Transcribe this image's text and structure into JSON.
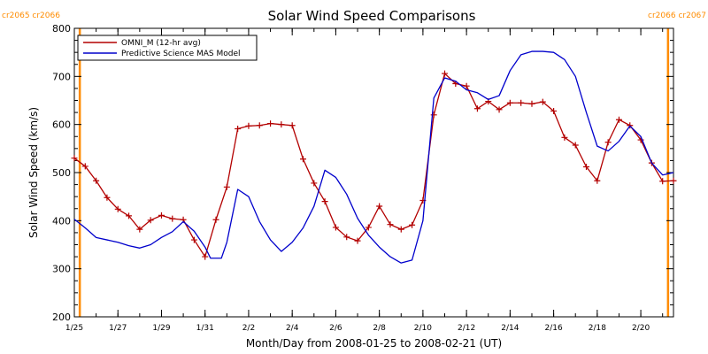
{
  "chart_data": {
    "type": "line",
    "title": "Solar Wind Speed Comparisons",
    "xlabel": "Month/Day from 2008-01-25 to 2008-02-21 (UT)",
    "ylabel": "Solar Wind Speed (km/s)",
    "xlim": [
      "2008-01-25",
      "2008-02-21 12:00"
    ],
    "ylim": [
      200,
      800
    ],
    "yticks": [
      200,
      300,
      400,
      500,
      600,
      700,
      800
    ],
    "xticks": [
      {
        "date": "2008-01-25",
        "label": "1/25"
      },
      {
        "date": "2008-01-27",
        "label": "1/27"
      },
      {
        "date": "2008-01-29",
        "label": "1/29"
      },
      {
        "date": "2008-01-31",
        "label": "1/31"
      },
      {
        "date": "2008-02-02",
        "label": "2/2"
      },
      {
        "date": "2008-02-04",
        "label": "2/4"
      },
      {
        "date": "2008-02-06",
        "label": "2/6"
      },
      {
        "date": "2008-02-08",
        "label": "2/8"
      },
      {
        "date": "2008-02-10",
        "label": "2/10"
      },
      {
        "date": "2008-02-12",
        "label": "2/12"
      },
      {
        "date": "2008-02-14",
        "label": "2/14"
      },
      {
        "date": "2008-02-16",
        "label": "2/16"
      },
      {
        "date": "2008-02-18",
        "label": "2/18"
      },
      {
        "date": "2008-02-20",
        "label": "2/20"
      }
    ],
    "legend_position": "top-left",
    "grid": false,
    "rotation_markers": [
      {
        "date": "2008-01-25 06:00",
        "label": "cr2065 cr2066",
        "side": "left"
      },
      {
        "date": "2008-02-21 06:00",
        "label": "cr2066 cr2067",
        "side": "right"
      }
    ],
    "series": [
      {
        "name": "OMNI_M (12-hr avg)",
        "color": "#b30000",
        "marker": "plus",
        "points": [
          [
            "2008-01-25 00:00",
            530
          ],
          [
            "2008-01-25 12:00",
            513
          ],
          [
            "2008-01-26 00:00",
            483
          ],
          [
            "2008-01-26 12:00",
            448
          ],
          [
            "2008-01-27 00:00",
            424
          ],
          [
            "2008-01-27 12:00",
            410
          ],
          [
            "2008-01-28 00:00",
            382
          ],
          [
            "2008-01-28 12:00",
            401
          ],
          [
            "2008-01-29 00:00",
            411
          ],
          [
            "2008-01-29 12:00",
            404
          ],
          [
            "2008-01-30 00:00",
            402
          ],
          [
            "2008-01-30 12:00",
            360
          ],
          [
            "2008-01-31 00:00",
            325
          ],
          [
            "2008-01-31 12:00",
            402
          ],
          [
            "2008-02-01 00:00",
            470
          ],
          [
            "2008-02-01 12:00",
            591
          ],
          [
            "2008-02-02 00:00",
            597
          ],
          [
            "2008-02-02 12:00",
            598
          ],
          [
            "2008-02-03 00:00",
            602
          ],
          [
            "2008-02-03 12:00",
            600
          ],
          [
            "2008-02-04 00:00",
            598
          ],
          [
            "2008-02-04 12:00",
            528
          ],
          [
            "2008-02-05 00:00",
            478
          ],
          [
            "2008-02-05 12:00",
            440
          ],
          [
            "2008-02-06 00:00",
            386
          ],
          [
            "2008-02-06 12:00",
            366
          ],
          [
            "2008-02-07 00:00",
            358
          ],
          [
            "2008-02-07 12:00",
            386
          ],
          [
            "2008-02-08 00:00",
            430
          ],
          [
            "2008-02-08 12:00",
            392
          ],
          [
            "2008-02-09 00:00",
            382
          ],
          [
            "2008-02-09 12:00",
            391
          ],
          [
            "2008-02-10 00:00",
            442
          ],
          [
            "2008-02-10 12:00",
            620
          ],
          [
            "2008-02-11 00:00",
            706
          ],
          [
            "2008-02-11 12:00",
            685
          ],
          [
            "2008-02-12 00:00",
            680
          ],
          [
            "2008-02-12 12:00",
            633
          ],
          [
            "2008-02-13 00:00",
            648
          ],
          [
            "2008-02-13 12:00",
            631
          ],
          [
            "2008-02-14 00:00",
            645
          ],
          [
            "2008-02-14 12:00",
            645
          ],
          [
            "2008-02-15 00:00",
            643
          ],
          [
            "2008-02-15 12:00",
            647
          ],
          [
            "2008-02-16 00:00",
            628
          ],
          [
            "2008-02-16 12:00",
            573
          ],
          [
            "2008-02-17 00:00",
            557
          ],
          [
            "2008-02-17 12:00",
            512
          ],
          [
            "2008-02-18 00:00",
            483
          ],
          [
            "2008-02-18 12:00",
            563
          ],
          [
            "2008-02-19 00:00",
            610
          ],
          [
            "2008-02-19 12:00",
            598
          ],
          [
            "2008-02-20 00:00",
            568
          ],
          [
            "2008-02-20 12:00",
            520
          ],
          [
            "2008-02-21 00:00",
            482
          ],
          [
            "2008-02-21 12:00",
            483
          ]
        ]
      },
      {
        "name": "Predictive Science MAS Model",
        "color": "#0000cc",
        "marker": "none",
        "points": [
          [
            "2008-01-25 00:00",
            403
          ],
          [
            "2008-01-25 12:00",
            385
          ],
          [
            "2008-01-26 00:00",
            365
          ],
          [
            "2008-01-26 12:00",
            360
          ],
          [
            "2008-01-27 00:00",
            355
          ],
          [
            "2008-01-27 12:00",
            348
          ],
          [
            "2008-01-28 00:00",
            343
          ],
          [
            "2008-01-28 12:00",
            350
          ],
          [
            "2008-01-29 00:00",
            365
          ],
          [
            "2008-01-29 12:00",
            377
          ],
          [
            "2008-01-30 00:00",
            398
          ],
          [
            "2008-01-30 12:00",
            378
          ],
          [
            "2008-01-31 00:00",
            345
          ],
          [
            "2008-01-31 06:00",
            322
          ],
          [
            "2008-01-31 18:00",
            322
          ],
          [
            "2008-02-01 00:00",
            355
          ],
          [
            "2008-02-01 12:00",
            465
          ],
          [
            "2008-02-02 00:00",
            450
          ],
          [
            "2008-02-02 12:00",
            398
          ],
          [
            "2008-02-03 00:00",
            360
          ],
          [
            "2008-02-03 12:00",
            336
          ],
          [
            "2008-02-04 00:00",
            355
          ],
          [
            "2008-02-04 12:00",
            385
          ],
          [
            "2008-02-05 00:00",
            430
          ],
          [
            "2008-02-05 12:00",
            505
          ],
          [
            "2008-02-06 00:00",
            490
          ],
          [
            "2008-02-06 12:00",
            455
          ],
          [
            "2008-02-07 00:00",
            405
          ],
          [
            "2008-02-07 12:00",
            370
          ],
          [
            "2008-02-08 00:00",
            345
          ],
          [
            "2008-02-08 12:00",
            325
          ],
          [
            "2008-02-09 00:00",
            312
          ],
          [
            "2008-02-09 12:00",
            318
          ],
          [
            "2008-02-10 00:00",
            400
          ],
          [
            "2008-02-10 12:00",
            655
          ],
          [
            "2008-02-11 00:00",
            697
          ],
          [
            "2008-02-11 12:00",
            690
          ],
          [
            "2008-02-12 00:00",
            672
          ],
          [
            "2008-02-12 12:00",
            666
          ],
          [
            "2008-02-13 00:00",
            652
          ],
          [
            "2008-02-13 12:00",
            660
          ],
          [
            "2008-02-14 00:00",
            712
          ],
          [
            "2008-02-14 12:00",
            745
          ],
          [
            "2008-02-15 00:00",
            752
          ],
          [
            "2008-02-15 12:00",
            752
          ],
          [
            "2008-02-16 00:00",
            750
          ],
          [
            "2008-02-16 12:00",
            735
          ],
          [
            "2008-02-17 00:00",
            700
          ],
          [
            "2008-02-17 12:00",
            625
          ],
          [
            "2008-02-18 00:00",
            555
          ],
          [
            "2008-02-18 12:00",
            545
          ],
          [
            "2008-02-19 00:00",
            565
          ],
          [
            "2008-02-19 12:00",
            597
          ],
          [
            "2008-02-20 00:00",
            575
          ],
          [
            "2008-02-20 12:00",
            520
          ],
          [
            "2008-02-21 00:00",
            495
          ],
          [
            "2008-02-21 12:00",
            500
          ]
        ]
      }
    ]
  }
}
